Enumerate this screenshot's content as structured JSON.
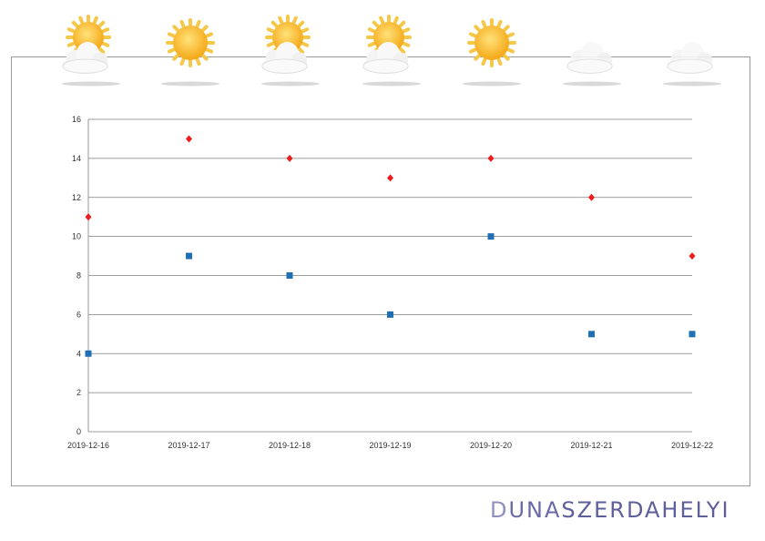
{
  "chart_data": {
    "type": "scatter",
    "title": "",
    "xlabel": "",
    "ylabel": "",
    "x": [
      "2019-12-16",
      "2019-12-17",
      "2019-12-18",
      "2019-12-19",
      "2019-12-20",
      "2019-12-21",
      "2019-12-22"
    ],
    "ylim": [
      0,
      16
    ],
    "yticks": [
      0,
      2,
      4,
      6,
      8,
      10,
      12,
      14,
      16
    ],
    "grid": true,
    "legend": "none",
    "series": [
      {
        "values": [
          11,
          15,
          14,
          13,
          14,
          12,
          9
        ],
        "marker": "diamond",
        "color": "#ee1c1c"
      },
      {
        "values": [
          4,
          9,
          8,
          6,
          10,
          5,
          5
        ],
        "marker": "square",
        "color": "#1f6fb4"
      }
    ]
  },
  "weather_icons": [
    "sun-cloud",
    "sun",
    "sun-cloud",
    "sun-cloud",
    "sun",
    "cloud",
    "cloud"
  ],
  "logo": {
    "part1": "D",
    "part2": "UNA",
    "part3": "SZERDAHELYI"
  }
}
